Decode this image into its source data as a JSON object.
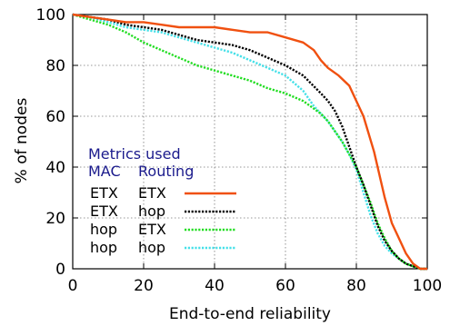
{
  "chart_data": {
    "type": "line",
    "title": "",
    "xlabel": "End-to-end reliability",
    "ylabel": "% of nodes",
    "xlim": [
      0,
      100
    ],
    "ylim": [
      0,
      100
    ],
    "xticks": [
      "0",
      "20",
      "40",
      "60",
      "80",
      "100"
    ],
    "yticks": [
      "0",
      "20",
      "40",
      "60",
      "80",
      "100"
    ],
    "grid": true,
    "legend": {
      "title": "Metrics used",
      "columns": [
        "MAC",
        "Routing"
      ],
      "placement": "bottom-left"
    },
    "series": [
      {
        "mac": "ETX",
        "routing": "ETX",
        "color": "#f05010",
        "style": "solid",
        "x": [
          0,
          5,
          10,
          15,
          20,
          25,
          30,
          35,
          40,
          45,
          50,
          55,
          60,
          65,
          68,
          70,
          72,
          75,
          78,
          80,
          82,
          85,
          88,
          90,
          92,
          94,
          96,
          98,
          100
        ],
        "y": [
          100,
          99,
          98,
          97,
          97,
          96,
          95,
          95,
          95,
          94,
          93,
          93,
          91,
          89,
          86,
          82,
          79,
          76,
          72,
          66,
          60,
          46,
          28,
          18,
          12,
          6,
          2,
          0,
          0
        ]
      },
      {
        "mac": "ETX",
        "routing": "hop",
        "color": "#000000",
        "style": "dotted",
        "x": [
          0,
          5,
          10,
          15,
          20,
          25,
          30,
          35,
          40,
          45,
          50,
          55,
          60,
          65,
          70,
          72,
          74,
          76,
          78,
          80,
          82,
          84,
          86,
          88,
          90,
          92,
          94,
          96,
          98,
          100
        ],
        "y": [
          100,
          99,
          98,
          96,
          95,
          94,
          92,
          90,
          89,
          88,
          86,
          83,
          80,
          76,
          69,
          66,
          62,
          56,
          48,
          40,
          33,
          25,
          17,
          11,
          7,
          4,
          2,
          1,
          0,
          0
        ]
      },
      {
        "mac": "hop",
        "routing": "ETX",
        "color": "#22dd22",
        "style": "dotted",
        "x": [
          0,
          5,
          10,
          15,
          20,
          25,
          30,
          35,
          40,
          45,
          50,
          55,
          60,
          65,
          70,
          72,
          74,
          76,
          78,
          80,
          82,
          84,
          86,
          88,
          90,
          92,
          94,
          96,
          98,
          100
        ],
        "y": [
          100,
          98,
          96,
          93,
          89,
          86,
          83,
          80,
          78,
          76,
          74,
          71,
          69,
          66,
          61,
          58,
          54,
          50,
          45,
          40,
          33,
          26,
          18,
          12,
          7,
          4,
          2,
          1,
          0,
          0
        ]
      },
      {
        "mac": "hop",
        "routing": "hop",
        "color": "#44e0e8",
        "style": "dotted",
        "x": [
          0,
          5,
          10,
          15,
          20,
          25,
          30,
          35,
          40,
          45,
          50,
          55,
          60,
          65,
          68,
          70,
          72,
          74,
          76,
          78,
          80,
          82,
          84,
          86,
          88,
          90,
          92,
          94,
          96,
          98,
          100
        ],
        "y": [
          100,
          99,
          97,
          95,
          94,
          93,
          91,
          89,
          87,
          85,
          82,
          79,
          76,
          70,
          64,
          61,
          58,
          54,
          50,
          45,
          39,
          30,
          21,
          14,
          9,
          6,
          4,
          2,
          1,
          0,
          0
        ]
      }
    ]
  }
}
